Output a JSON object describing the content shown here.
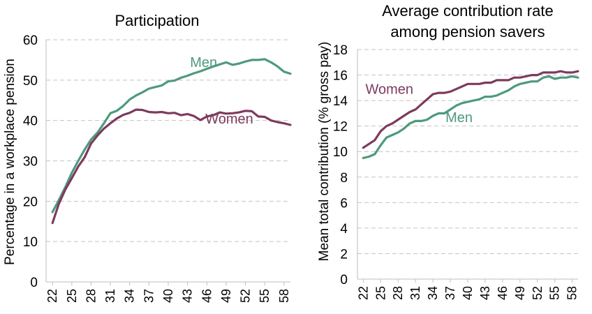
{
  "colors": {
    "men": "#4e9a7c",
    "women": "#7e3a5e"
  },
  "chart_data": [
    {
      "type": "line",
      "title": "Participation",
      "title_lines": [
        "Participation"
      ],
      "ylabel": "Percentage in a workplace pension",
      "xlabel": "",
      "ylim": [
        0,
        60
      ],
      "yticks": [
        0,
        10,
        20,
        30,
        40,
        50,
        60
      ],
      "xlim": [
        21,
        59
      ],
      "xticks": [
        22,
        25,
        28,
        31,
        34,
        37,
        40,
        43,
        46,
        49,
        52,
        55,
        58
      ],
      "grid": true,
      "x": [
        22,
        23,
        24,
        25,
        26,
        27,
        28,
        29,
        30,
        31,
        32,
        33,
        34,
        35,
        36,
        37,
        38,
        39,
        40,
        41,
        42,
        43,
        44,
        45,
        46,
        47,
        48,
        49,
        50,
        51,
        52,
        53,
        54,
        55,
        56,
        57,
        58,
        59
      ],
      "series": [
        {
          "name": "Men",
          "color_key": "men",
          "label_at": [
            45.5,
            54.5
          ],
          "values": [
            17.3,
            20.3,
            23.5,
            27.0,
            30.0,
            32.8,
            35.3,
            37.0,
            39.3,
            41.8,
            42.4,
            43.6,
            45.2,
            46.2,
            47.0,
            47.9,
            48.3,
            48.7,
            49.7,
            49.9,
            50.6,
            51.1,
            51.7,
            52.2,
            52.8,
            53.4,
            53.9,
            54.4,
            53.8,
            54.1,
            54.6,
            55.0,
            55.0,
            55.2,
            54.4,
            53.4,
            52.1,
            51.6
          ]
        },
        {
          "name": "Women",
          "color_key": "women",
          "label_at": [
            49.5,
            40.5
          ],
          "values": [
            14.6,
            19.4,
            22.9,
            25.7,
            28.6,
            30.9,
            34.3,
            36.3,
            38.0,
            39.3,
            40.5,
            41.4,
            41.9,
            42.7,
            42.6,
            42.1,
            42.0,
            42.1,
            41.8,
            41.9,
            41.3,
            41.6,
            41.1,
            40.1,
            41.0,
            41.3,
            42.0,
            41.7,
            41.8,
            42.0,
            42.4,
            42.3,
            41.0,
            40.9,
            40.0,
            39.6,
            39.3,
            38.9
          ]
        }
      ]
    },
    {
      "type": "line",
      "title": "Average contribution rate among pension savers",
      "title_lines": [
        "Average contribution rate",
        "among pension savers"
      ],
      "ylabel": "Mean total contribution (% gross pay)",
      "xlabel": "",
      "ylim": [
        0,
        18
      ],
      "yticks": [
        0,
        2,
        4,
        6,
        8,
        10,
        12,
        14,
        16,
        18
      ],
      "xlim": [
        21,
        59
      ],
      "xticks": [
        22,
        25,
        28,
        31,
        34,
        37,
        40,
        43,
        46,
        49,
        52,
        55,
        58
      ],
      "grid": true,
      "x": [
        22,
        23,
        24,
        25,
        26,
        27,
        28,
        29,
        30,
        31,
        32,
        33,
        34,
        35,
        36,
        37,
        38,
        39,
        40,
        41,
        42,
        43,
        44,
        45,
        46,
        47,
        48,
        49,
        50,
        51,
        52,
        53,
        54,
        55,
        56,
        57,
        58,
        59
      ],
      "series": [
        {
          "name": "Women",
          "color_key": "women",
          "label_at": [
            26.5,
            14.9
          ],
          "values": [
            10.3,
            10.6,
            10.9,
            11.6,
            12.0,
            12.2,
            12.5,
            12.8,
            13.1,
            13.3,
            13.7,
            14.1,
            14.5,
            14.6,
            14.6,
            14.7,
            14.9,
            15.1,
            15.3,
            15.3,
            15.3,
            15.4,
            15.4,
            15.6,
            15.6,
            15.6,
            15.8,
            15.8,
            15.9,
            16.0,
            16.0,
            16.2,
            16.2,
            16.2,
            16.3,
            16.2,
            16.2,
            16.3
          ]
        },
        {
          "name": "Men",
          "color_key": "men",
          "label_at": [
            38.5,
            12.7
          ],
          "values": [
            9.5,
            9.6,
            9.8,
            10.5,
            11.1,
            11.3,
            11.5,
            11.8,
            12.2,
            12.4,
            12.4,
            12.5,
            12.8,
            13.0,
            13.0,
            13.3,
            13.6,
            13.8,
            13.9,
            14.0,
            14.1,
            14.3,
            14.3,
            14.4,
            14.6,
            14.8,
            15.1,
            15.3,
            15.4,
            15.5,
            15.5,
            15.8,
            15.9,
            15.7,
            15.8,
            15.8,
            15.9,
            15.8
          ]
        }
      ]
    }
  ]
}
